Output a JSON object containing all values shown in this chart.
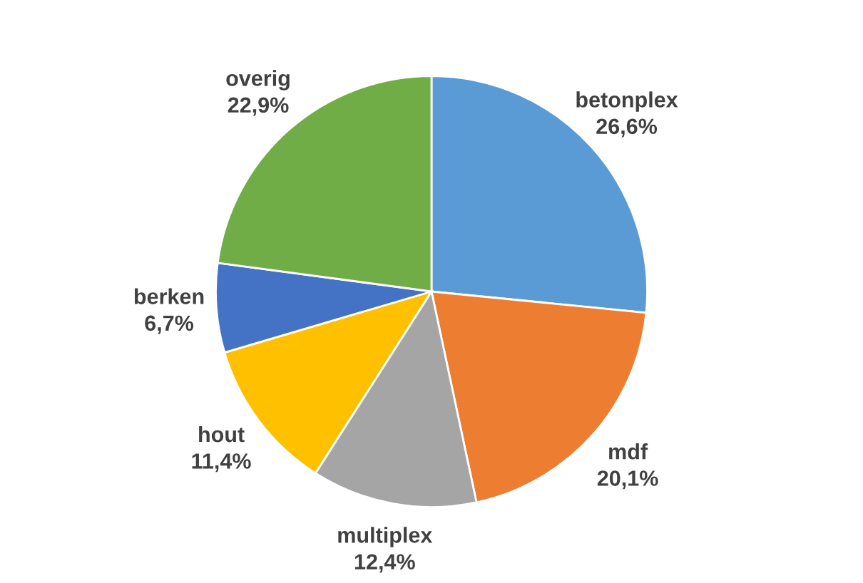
{
  "chart_data": {
    "type": "pie",
    "categories": [
      "betonplex",
      "mdf",
      "multiplex",
      "hout",
      "berken",
      "overig"
    ],
    "values": [
      26.6,
      20.1,
      12.4,
      11.4,
      6.7,
      22.9
    ],
    "value_labels": [
      "26,6%",
      "20,1%",
      "12,4%",
      "11,4%",
      "6,7%",
      "22,9%"
    ],
    "colors": [
      "#5b9bd5",
      "#ed7d31",
      "#a5a5a5",
      "#ffc000",
      "#4472c4",
      "#70ad47"
    ]
  }
}
